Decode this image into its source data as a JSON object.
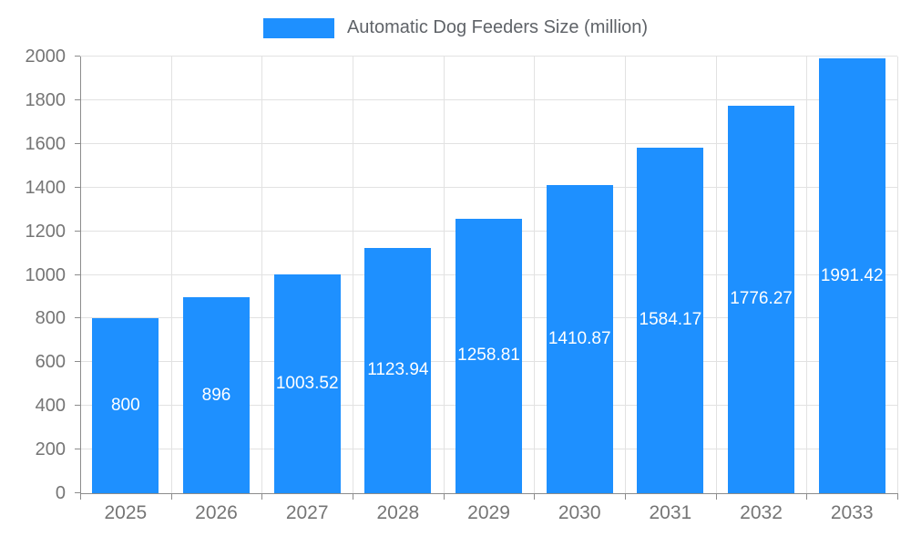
{
  "legend": {
    "label": "Automatic Dog Feeders Size (million)"
  },
  "colors": {
    "bar": "#1E90FF",
    "grid": "#e2e2e2",
    "axis": "#8c8c8c",
    "axis_text": "#757575",
    "legend_text": "#5f6368",
    "bar_label": "#ffffff"
  },
  "chart_data": {
    "type": "bar",
    "title": "Automatic Dog Feeders Size (million)",
    "categories": [
      "2025",
      "2026",
      "2027",
      "2028",
      "2029",
      "2030",
      "2031",
      "2032",
      "2033"
    ],
    "values": [
      800,
      896,
      1003.52,
      1123.94,
      1258.81,
      1410.87,
      1584.17,
      1776.27,
      1991.42
    ],
    "value_labels": [
      "800",
      "896",
      "1003.52",
      "1123.94",
      "1258.81",
      "1410.87",
      "1584.17",
      "1776.27",
      "1991.42"
    ],
    "xlabel": "",
    "ylabel": "",
    "ylim": [
      0,
      2000
    ],
    "yticks": [
      0,
      200,
      400,
      600,
      800,
      1000,
      1200,
      1400,
      1600,
      1800,
      2000
    ],
    "grid": true,
    "legend_position": "top-center",
    "bar_label_position": "inside-middle"
  }
}
